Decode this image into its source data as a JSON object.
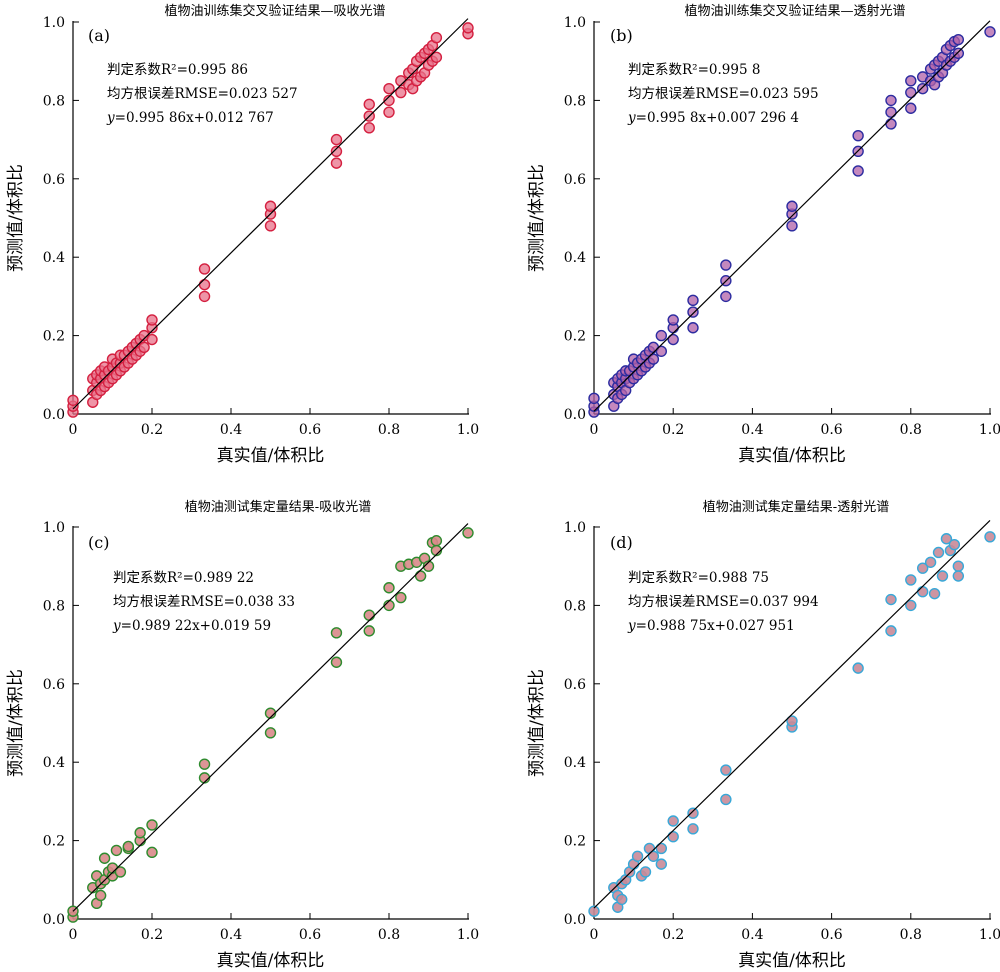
{
  "chart_data": [
    {
      "type": "scatter",
      "panel_label": "(a)",
      "title": "植物油训练集交叉验证结果—吸收光谱",
      "xlabel": "真实值/体积比",
      "ylabel": "预测值/体积比",
      "xlim": [
        0,
        1
      ],
      "ylim": [
        0,
        1
      ],
      "xticks": [
        "0",
        "0.2",
        "0.4",
        "0.6",
        "0.8",
        "1.0"
      ],
      "yticks": [
        "0.0",
        "0.2",
        "0.4",
        "0.6",
        "0.8",
        "1.0"
      ],
      "grid": false,
      "stats": {
        "r2_label": "判定系数R²=",
        "r2": "0.995 86",
        "rmse_label": "均方根误差RMSE=",
        "rmse": "0.023 527",
        "eq_prefix": "y=",
        "eq": "0.995 86x+0.012 767"
      },
      "fit": {
        "slope": 0.99586,
        "intercept": 0.012767
      },
      "marker": {
        "fill": "#e8728a",
        "stroke": "#d42040",
        "opacity": 0.75
      },
      "x": [
        0,
        0,
        0,
        0.05,
        0.05,
        0.05,
        0.06,
        0.06,
        0.06,
        0.07,
        0.07,
        0.07,
        0.08,
        0.08,
        0.08,
        0.09,
        0.09,
        0.1,
        0.1,
        0.1,
        0.11,
        0.11,
        0.12,
        0.12,
        0.12,
        0.13,
        0.13,
        0.14,
        0.14,
        0.15,
        0.15,
        0.16,
        0.16,
        0.17,
        0.17,
        0.18,
        0.18,
        0.2,
        0.2,
        0.2,
        0.333,
        0.333,
        0.333,
        0.5,
        0.5,
        0.5,
        0.667,
        0.667,
        0.667,
        0.75,
        0.75,
        0.75,
        0.8,
        0.8,
        0.8,
        0.83,
        0.83,
        0.85,
        0.85,
        0.86,
        0.86,
        0.87,
        0.87,
        0.88,
        0.88,
        0.89,
        0.89,
        0.9,
        0.9,
        0.91,
        0.91,
        0.92,
        0.92,
        1.0,
        1.0
      ],
      "y": [
        0.005,
        0.02,
        0.035,
        0.03,
        0.06,
        0.09,
        0.05,
        0.08,
        0.1,
        0.06,
        0.09,
        0.11,
        0.07,
        0.1,
        0.12,
        0.08,
        0.11,
        0.09,
        0.12,
        0.14,
        0.1,
        0.13,
        0.11,
        0.13,
        0.15,
        0.12,
        0.15,
        0.13,
        0.16,
        0.14,
        0.17,
        0.15,
        0.18,
        0.16,
        0.19,
        0.17,
        0.2,
        0.19,
        0.22,
        0.24,
        0.3,
        0.33,
        0.37,
        0.48,
        0.51,
        0.53,
        0.64,
        0.67,
        0.7,
        0.73,
        0.76,
        0.79,
        0.77,
        0.8,
        0.83,
        0.82,
        0.85,
        0.84,
        0.87,
        0.83,
        0.88,
        0.85,
        0.9,
        0.86,
        0.91,
        0.87,
        0.92,
        0.89,
        0.93,
        0.9,
        0.94,
        0.91,
        0.96,
        0.97,
        0.985
      ]
    },
    {
      "type": "scatter",
      "panel_label": "(b)",
      "title": "植物油训练集交叉验证结果—透射光谱",
      "xlabel": "真实值/体积比",
      "ylabel": "预测值/体积比",
      "xlim": [
        0,
        1
      ],
      "ylim": [
        0,
        1
      ],
      "xticks": [
        "0",
        "0.2",
        "0.4",
        "0.6",
        "0.8",
        "1.0"
      ],
      "yticks": [
        "0.0",
        "0.2",
        "0.4",
        "0.6",
        "0.8",
        "1.0"
      ],
      "grid": false,
      "stats": {
        "r2_label": "判定系数R²=",
        "r2": "0.995 8",
        "rmse_label": "均方根误差RMSE=",
        "rmse": "0.023 595",
        "eq_prefix": "y=",
        "eq": "0.995 8x+0.007 296 4"
      },
      "fit": {
        "slope": 0.9958,
        "intercept": 0.0072964
      },
      "marker": {
        "fill": "#b060a8",
        "stroke": "#2c2ca0",
        "opacity": 0.75
      },
      "x": [
        0,
        0,
        0,
        0.05,
        0.05,
        0.05,
        0.06,
        0.06,
        0.06,
        0.07,
        0.07,
        0.07,
        0.08,
        0.08,
        0.08,
        0.09,
        0.09,
        0.1,
        0.1,
        0.1,
        0.11,
        0.11,
        0.12,
        0.12,
        0.13,
        0.13,
        0.14,
        0.14,
        0.15,
        0.15,
        0.17,
        0.17,
        0.2,
        0.2,
        0.2,
        0.25,
        0.25,
        0.25,
        0.333,
        0.333,
        0.333,
        0.5,
        0.5,
        0.5,
        0.667,
        0.667,
        0.667,
        0.75,
        0.75,
        0.75,
        0.8,
        0.8,
        0.8,
        0.83,
        0.83,
        0.85,
        0.85,
        0.86,
        0.86,
        0.87,
        0.87,
        0.88,
        0.88,
        0.89,
        0.89,
        0.9,
        0.9,
        0.91,
        0.91,
        0.92,
        0.92,
        1.0
      ],
      "y": [
        0.005,
        0.02,
        0.04,
        0.02,
        0.05,
        0.08,
        0.04,
        0.07,
        0.09,
        0.05,
        0.08,
        0.1,
        0.06,
        0.09,
        0.11,
        0.08,
        0.11,
        0.09,
        0.12,
        0.14,
        0.1,
        0.13,
        0.11,
        0.14,
        0.12,
        0.15,
        0.13,
        0.16,
        0.14,
        0.17,
        0.16,
        0.2,
        0.19,
        0.22,
        0.24,
        0.22,
        0.26,
        0.29,
        0.3,
        0.34,
        0.38,
        0.48,
        0.51,
        0.53,
        0.62,
        0.67,
        0.71,
        0.74,
        0.77,
        0.8,
        0.78,
        0.82,
        0.85,
        0.83,
        0.86,
        0.85,
        0.88,
        0.84,
        0.89,
        0.86,
        0.9,
        0.87,
        0.91,
        0.89,
        0.93,
        0.9,
        0.94,
        0.91,
        0.95,
        0.92,
        0.955,
        0.975
      ]
    },
    {
      "type": "scatter",
      "panel_label": "(c)",
      "title": "植物油测试集定量结果-吸收光谱",
      "xlabel": "真实值/体积比",
      "ylabel": "预测值/体积比",
      "xlim": [
        0,
        1
      ],
      "ylim": [
        0,
        1
      ],
      "xticks": [
        "0",
        "0.2",
        "0.4",
        "0.6",
        "0.8",
        "1.0"
      ],
      "yticks": [
        "0.0",
        "0.2",
        "0.4",
        "0.6",
        "0.8",
        "1.0"
      ],
      "grid": false,
      "stats": {
        "r2_label": "判定系数R²=",
        "r2": "0.989 22",
        "rmse_label": "均方根误差RMSE=",
        "rmse": "0.038 33",
        "eq_prefix": "y=",
        "eq": "0.989 22x+0.019 59"
      },
      "fit": {
        "slope": 0.98922,
        "intercept": 0.01959
      },
      "marker": {
        "fill": "#d98a8a",
        "stroke": "#2e8b2e",
        "opacity": 0.9
      },
      "x": [
        0,
        0,
        0.05,
        0.06,
        0.06,
        0.07,
        0.07,
        0.08,
        0.08,
        0.09,
        0.1,
        0.1,
        0.11,
        0.12,
        0.14,
        0.14,
        0.17,
        0.17,
        0.2,
        0.2,
        0.333,
        0.333,
        0.5,
        0.5,
        0.667,
        0.667,
        0.75,
        0.75,
        0.8,
        0.8,
        0.83,
        0.83,
        0.85,
        0.87,
        0.88,
        0.89,
        0.9,
        0.91,
        0.92,
        0.92,
        1.0
      ],
      "y": [
        0.005,
        0.02,
        0.08,
        0.04,
        0.11,
        0.06,
        0.09,
        0.1,
        0.155,
        0.12,
        0.11,
        0.13,
        0.175,
        0.12,
        0.18,
        0.185,
        0.2,
        0.22,
        0.17,
        0.24,
        0.36,
        0.395,
        0.475,
        0.525,
        0.655,
        0.73,
        0.735,
        0.775,
        0.8,
        0.845,
        0.82,
        0.9,
        0.905,
        0.91,
        0.875,
        0.92,
        0.9,
        0.96,
        0.965,
        0.94,
        0.985
      ]
    },
    {
      "type": "scatter",
      "panel_label": "(d)",
      "title": "植物油测试集定量结果-透射光谱",
      "xlabel": "真实值/体积比",
      "ylabel": "预测值/体积比",
      "xlim": [
        0,
        1
      ],
      "ylim": [
        0,
        1
      ],
      "xticks": [
        "0",
        "0.2",
        "0.4",
        "0.6",
        "0.8",
        "1.0"
      ],
      "yticks": [
        "0.0",
        "0.2",
        "0.4",
        "0.6",
        "0.8",
        "1.0"
      ],
      "grid": false,
      "stats": {
        "r2_label": "判定系数R²=",
        "r2": "0.988 75",
        "rmse_label": "均方根误差RMSE=",
        "rmse": "0.037 994",
        "eq_prefix": "y=",
        "eq": "0.988 75x+0.027 951"
      },
      "fit": {
        "slope": 0.98875,
        "intercept": 0.027951
      },
      "marker": {
        "fill": "#c88a98",
        "stroke": "#38a8d8",
        "opacity": 0.9
      },
      "x": [
        0,
        0.05,
        0.06,
        0.06,
        0.07,
        0.07,
        0.08,
        0.09,
        0.1,
        0.11,
        0.12,
        0.13,
        0.14,
        0.15,
        0.17,
        0.17,
        0.2,
        0.2,
        0.25,
        0.25,
        0.333,
        0.333,
        0.5,
        0.5,
        0.667,
        0.75,
        0.75,
        0.8,
        0.8,
        0.83,
        0.83,
        0.85,
        0.86,
        0.87,
        0.88,
        0.89,
        0.9,
        0.91,
        0.92,
        0.92,
        1.0
      ],
      "y": [
        0.02,
        0.08,
        0.03,
        0.06,
        0.05,
        0.09,
        0.1,
        0.12,
        0.14,
        0.16,
        0.11,
        0.12,
        0.18,
        0.16,
        0.14,
        0.18,
        0.21,
        0.25,
        0.23,
        0.27,
        0.305,
        0.38,
        0.49,
        0.505,
        0.64,
        0.735,
        0.815,
        0.8,
        0.865,
        0.835,
        0.895,
        0.91,
        0.83,
        0.935,
        0.875,
        0.97,
        0.94,
        0.955,
        0.9,
        0.875,
        0.975
      ]
    }
  ]
}
